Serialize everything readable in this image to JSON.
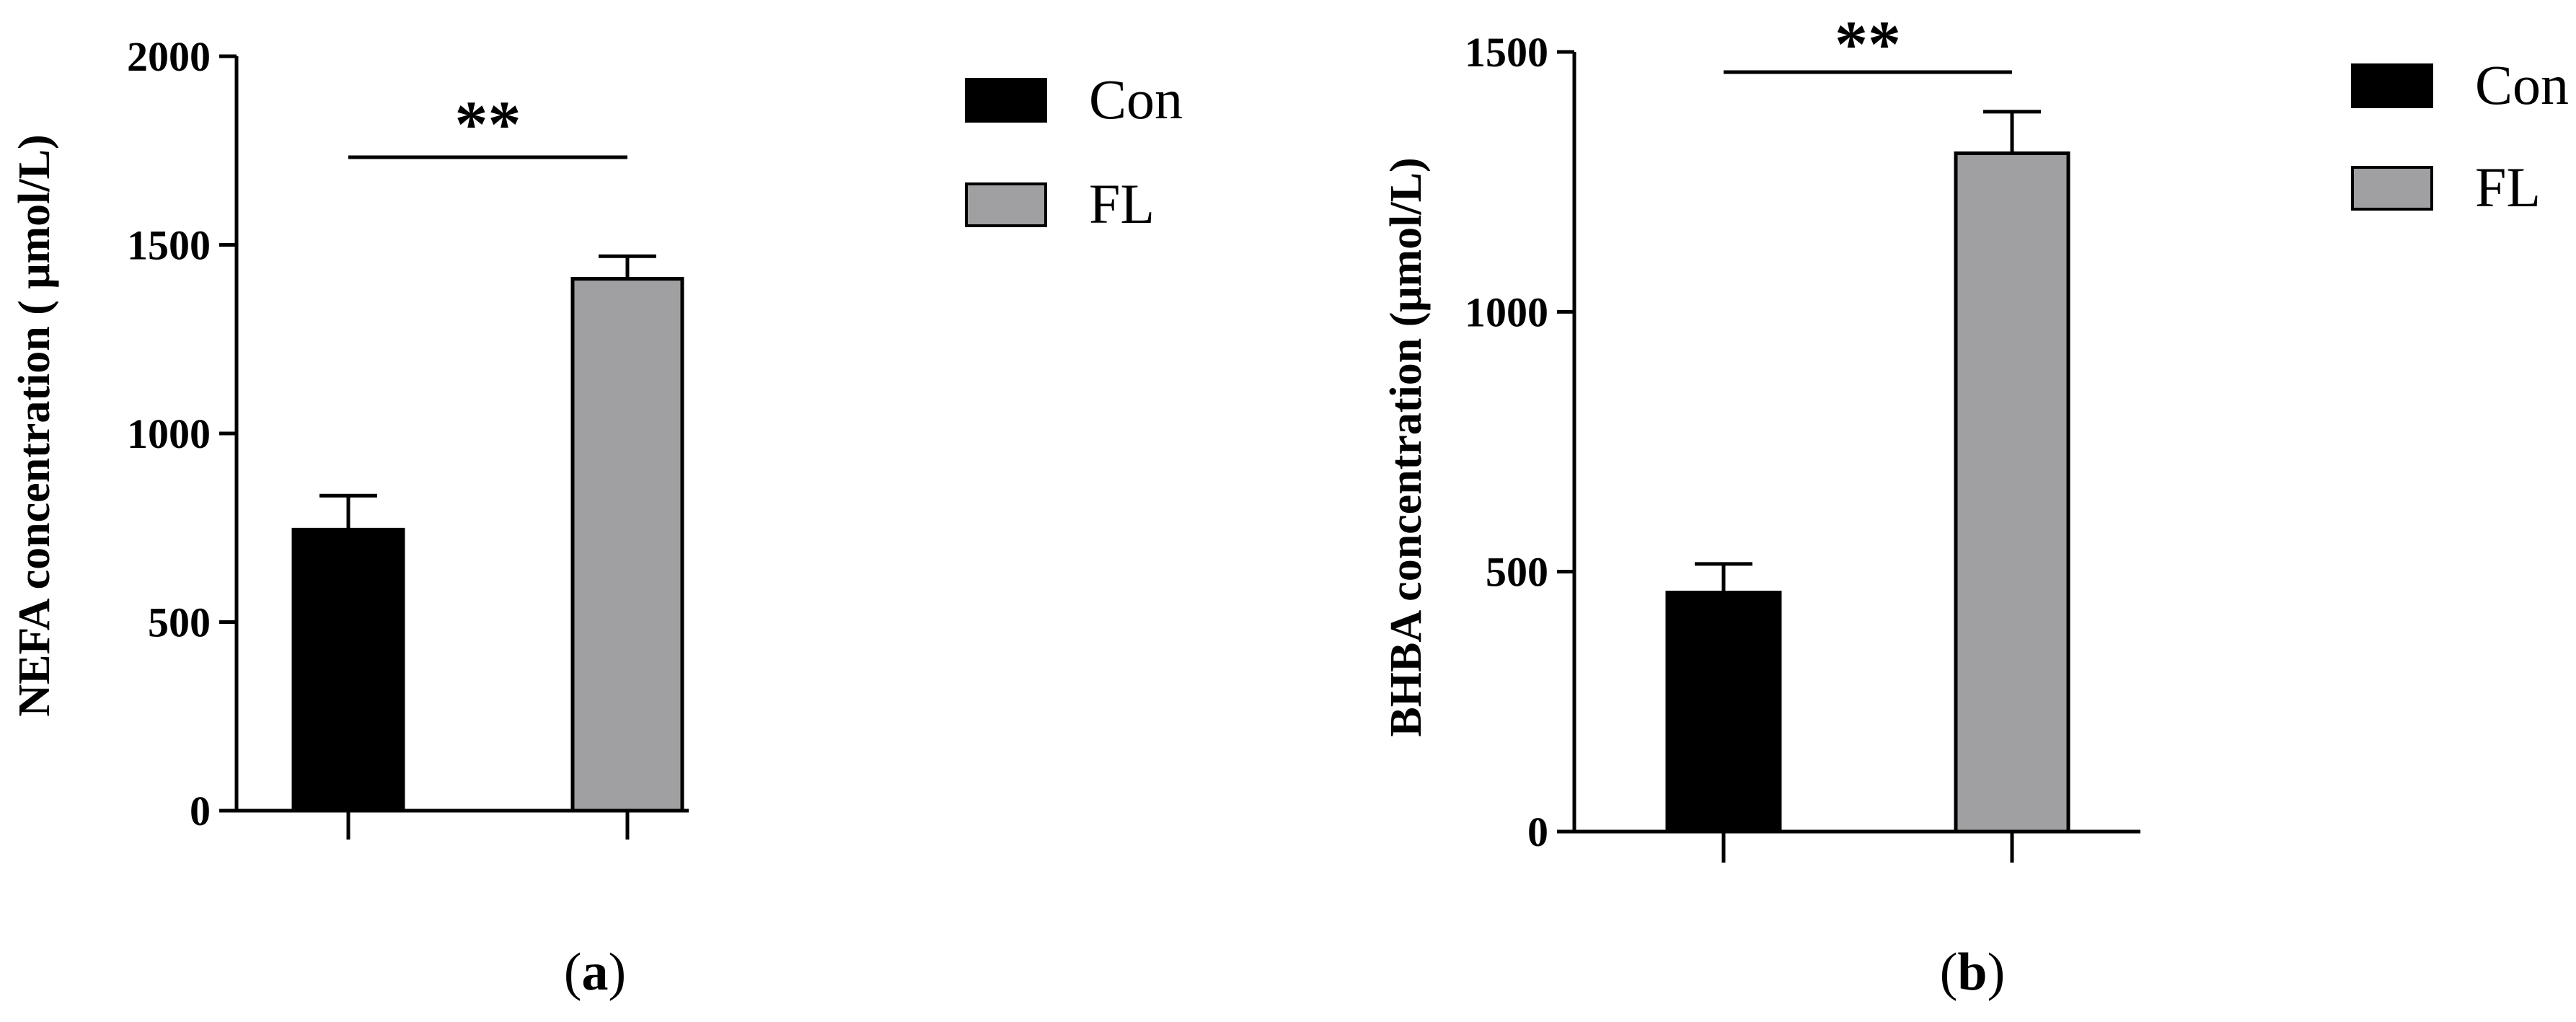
{
  "chart_data": [
    {
      "type": "bar",
      "panel": "a",
      "categories": [
        "Con",
        "FL"
      ],
      "values": [
        745,
        1410
      ],
      "errors": [
        90,
        60
      ],
      "ylabel": "NEFA concentration ( μmol/L)",
      "ylim": [
        0,
        2000
      ],
      "yticks": [
        0,
        500,
        1000,
        1500,
        2000
      ],
      "significance": "**",
      "legend": [
        "Con",
        "FL"
      ],
      "legend_position": "right",
      "colors": [
        "#000000",
        "#a0a0a3"
      ]
    },
    {
      "type": "bar",
      "panel": "b",
      "categories": [
        "Con",
        "FL"
      ],
      "values": [
        460,
        1305
      ],
      "errors": [
        55,
        80
      ],
      "ylabel": "BHBA concentration (μmol/L)",
      "ylim": [
        0,
        1500
      ],
      "yticks": [
        0,
        500,
        1000,
        1500
      ],
      "significance": "**",
      "legend": [
        "Con",
        "FL"
      ],
      "legend_position": "right",
      "colors": [
        "#000000",
        "#a0a0a3"
      ]
    }
  ]
}
